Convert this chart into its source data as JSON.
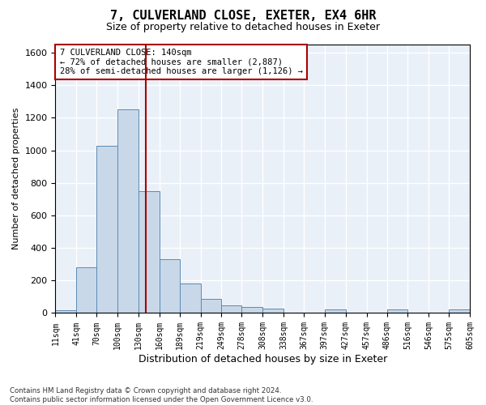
{
  "title": "7, CULVERLAND CLOSE, EXETER, EX4 6HR",
  "subtitle": "Size of property relative to detached houses in Exeter",
  "xlabel": "Distribution of detached houses by size in Exeter",
  "ylabel": "Number of detached properties",
  "bar_color": "#c8d8e8",
  "bar_edgecolor": "#5b8ab5",
  "bg_color": "#eaf0f8",
  "grid_color": "white",
  "vline_x": 140,
  "vline_color": "#aa0000",
  "annotation_text": "7 CULVERLAND CLOSE: 140sqm\n← 72% of detached houses are smaller (2,887)\n28% of semi-detached houses are larger (1,126) →",
  "annotation_box_color": "white",
  "annotation_box_edgecolor": "#aa0000",
  "footnote": "Contains HM Land Registry data © Crown copyright and database right 2024.\nContains public sector information licensed under the Open Government Licence v3.0.",
  "bin_edges": [
    11,
    41,
    70,
    100,
    130,
    160,
    189,
    219,
    249,
    278,
    308,
    338,
    367,
    397,
    427,
    457,
    486,
    516,
    546,
    575,
    605
  ],
  "bar_heights": [
    15,
    280,
    1030,
    1250,
    750,
    330,
    180,
    85,
    45,
    35,
    25,
    0,
    0,
    20,
    0,
    0,
    20,
    0,
    0,
    20
  ],
  "ylim": [
    0,
    1650
  ],
  "yticks": [
    0,
    200,
    400,
    600,
    800,
    1000,
    1200,
    1400,
    1600
  ]
}
